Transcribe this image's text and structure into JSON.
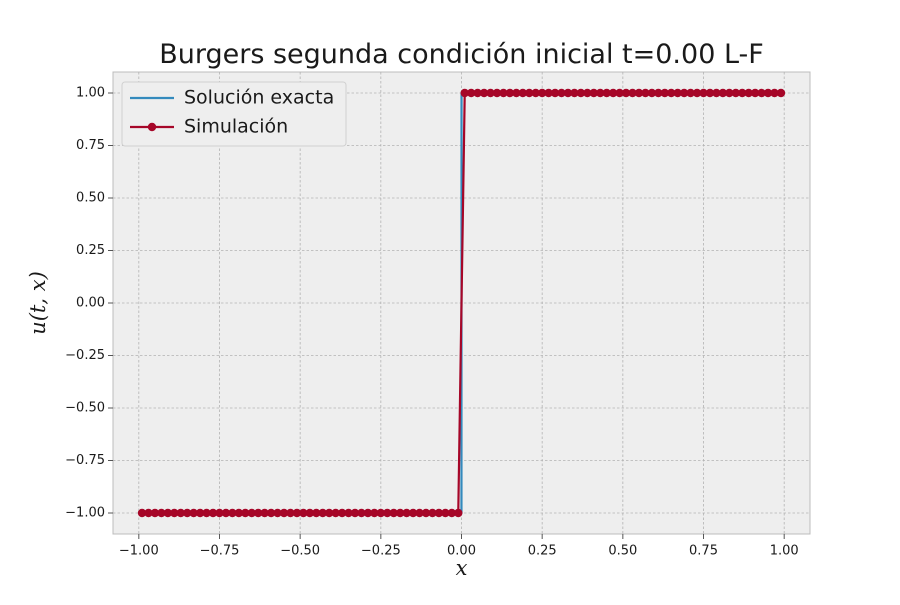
{
  "chart_data": {
    "type": "line",
    "title": "Burgers segunda condición inicial t=0.00 L-F",
    "xlabel": "x",
    "ylabel": "u(t, x)",
    "xlim": [
      -1.08,
      1.08
    ],
    "ylim": [
      -1.1,
      1.1
    ],
    "xticks": [
      -1.0,
      -0.75,
      -0.5,
      -0.25,
      0.0,
      0.25,
      0.5,
      0.75,
      1.0
    ],
    "xtick_labels": [
      "−1.00",
      "−0.75",
      "−0.50",
      "−0.25",
      "0.00",
      "0.25",
      "0.50",
      "0.75",
      "1.00"
    ],
    "yticks": [
      -1.0,
      -0.75,
      -0.5,
      -0.25,
      0.0,
      0.25,
      0.5,
      0.75,
      1.0
    ],
    "ytick_labels": [
      "−1.00",
      "−0.75",
      "−0.50",
      "−0.25",
      "0.00",
      "0.25",
      "0.50",
      "0.75",
      "1.00"
    ],
    "grid": true,
    "legend_position": "top-left",
    "series": [
      {
        "name": "Solución exacta",
        "color": "#348abd",
        "marker": "none",
        "x": [
          -1.0,
          -0.0001,
          0.0001,
          1.0
        ],
        "y": [
          -1,
          -1,
          1,
          1
        ]
      },
      {
        "name": "Simulación",
        "color": "#a60628",
        "marker": "circle",
        "x": [
          -0.99,
          -0.97,
          -0.95,
          -0.93,
          -0.91,
          -0.89,
          -0.87,
          -0.85,
          -0.83,
          -0.81,
          -0.79,
          -0.77,
          -0.75,
          -0.73,
          -0.71,
          -0.69,
          -0.67,
          -0.65,
          -0.63,
          -0.61,
          -0.59,
          -0.57,
          -0.55,
          -0.53,
          -0.51,
          -0.49,
          -0.47,
          -0.45,
          -0.43,
          -0.41,
          -0.39,
          -0.37,
          -0.35,
          -0.33,
          -0.31,
          -0.29,
          -0.27,
          -0.25,
          -0.23,
          -0.21,
          -0.19,
          -0.17,
          -0.15,
          -0.13,
          -0.11,
          -0.09,
          -0.07,
          -0.05,
          -0.03,
          -0.01,
          0.01,
          0.03,
          0.05,
          0.07,
          0.09,
          0.11,
          0.13,
          0.15,
          0.17,
          0.19,
          0.21,
          0.23,
          0.25,
          0.27,
          0.29,
          0.31,
          0.33,
          0.35,
          0.37,
          0.39,
          0.41,
          0.43,
          0.45,
          0.47,
          0.49,
          0.51,
          0.53,
          0.55,
          0.57,
          0.59,
          0.61,
          0.63,
          0.65,
          0.67,
          0.69,
          0.71,
          0.73,
          0.75,
          0.77,
          0.79,
          0.81,
          0.83,
          0.85,
          0.87,
          0.89,
          0.91,
          0.93,
          0.95,
          0.97,
          0.99
        ],
        "y": [
          -1,
          -1,
          -1,
          -1,
          -1,
          -1,
          -1,
          -1,
          -1,
          -1,
          -1,
          -1,
          -1,
          -1,
          -1,
          -1,
          -1,
          -1,
          -1,
          -1,
          -1,
          -1,
          -1,
          -1,
          -1,
          -1,
          -1,
          -1,
          -1,
          -1,
          -1,
          -1,
          -1,
          -1,
          -1,
          -1,
          -1,
          -1,
          -1,
          -1,
          -1,
          -1,
          -1,
          -1,
          -1,
          -1,
          -1,
          -1,
          -1,
          -1,
          1,
          1,
          1,
          1,
          1,
          1,
          1,
          1,
          1,
          1,
          1,
          1,
          1,
          1,
          1,
          1,
          1,
          1,
          1,
          1,
          1,
          1,
          1,
          1,
          1,
          1,
          1,
          1,
          1,
          1,
          1,
          1,
          1,
          1,
          1,
          1,
          1,
          1,
          1,
          1,
          1,
          1,
          1,
          1,
          1,
          1,
          1,
          1,
          1,
          1
        ]
      }
    ],
    "colors": {
      "plot_background": "#eeeeee",
      "grid": "#b2b2b2",
      "figure_background": "#ffffff"
    }
  }
}
